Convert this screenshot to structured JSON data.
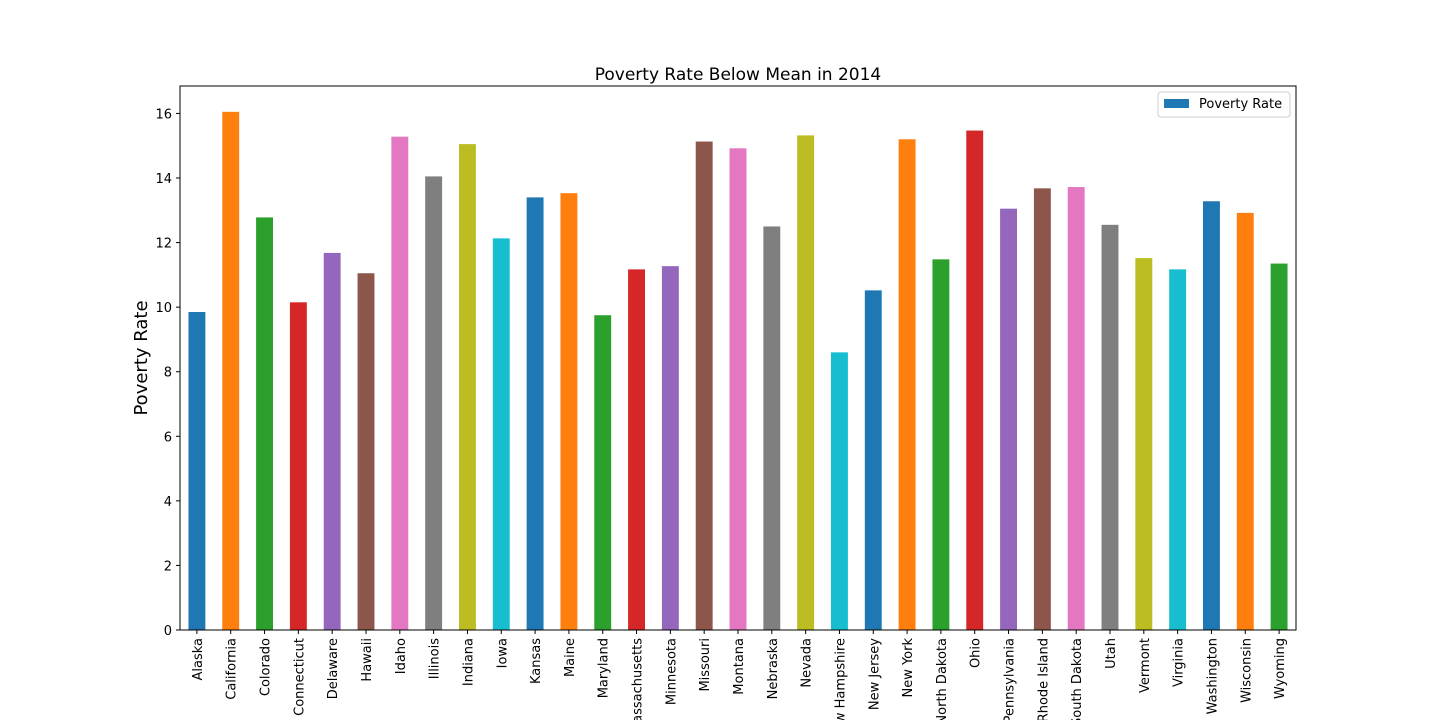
{
  "chart_data": {
    "type": "bar",
    "title": "Poverty Rate Below Mean in 2014",
    "xlabel": "",
    "ylabel": "Poverty Rate",
    "ylim": [
      0,
      16.85
    ],
    "yticks": [
      0,
      2,
      4,
      6,
      8,
      10,
      12,
      14,
      16
    ],
    "grid": false,
    "legend": {
      "placement": "top-right",
      "entries": [
        "Poverty Rate"
      ],
      "swatch_color": "#1f77b4"
    },
    "categories": [
      "Alaska",
      "California",
      "Colorado",
      "Connecticut",
      "Delaware",
      "Hawaii",
      "Idaho",
      "Illinois",
      "Indiana",
      "Iowa",
      "Kansas",
      "Maine",
      "Maryland",
      "Massachusetts",
      "Minnesota",
      "Missouri",
      "Montana",
      "Nebraska",
      "Nevada",
      "New Hampshire",
      "New Jersey",
      "New York",
      "North Dakota",
      "Ohio",
      "Pennsylvania",
      "Rhode Island",
      "South Dakota",
      "Utah",
      "Vermont",
      "Virginia",
      "Washington",
      "Wisconsin",
      "Wyoming"
    ],
    "series": [
      {
        "name": "Poverty Rate",
        "values": [
          9.85,
          16.05,
          12.78,
          10.15,
          11.68,
          11.05,
          15.28,
          14.05,
          15.05,
          12.13,
          13.4,
          13.53,
          9.75,
          11.17,
          11.27,
          15.13,
          14.92,
          12.5,
          15.32,
          8.6,
          10.52,
          15.2,
          11.48,
          15.47,
          13.05,
          13.68,
          13.72,
          12.55,
          11.52,
          11.17,
          13.28,
          12.92,
          11.35
        ]
      }
    ],
    "colors": [
      "#1f77b4",
      "#ff7f0e",
      "#2ca02c",
      "#d62728",
      "#9467bd",
      "#8c564b",
      "#e377c2",
      "#7f7f7f",
      "#bcbd22",
      "#17becf"
    ]
  }
}
